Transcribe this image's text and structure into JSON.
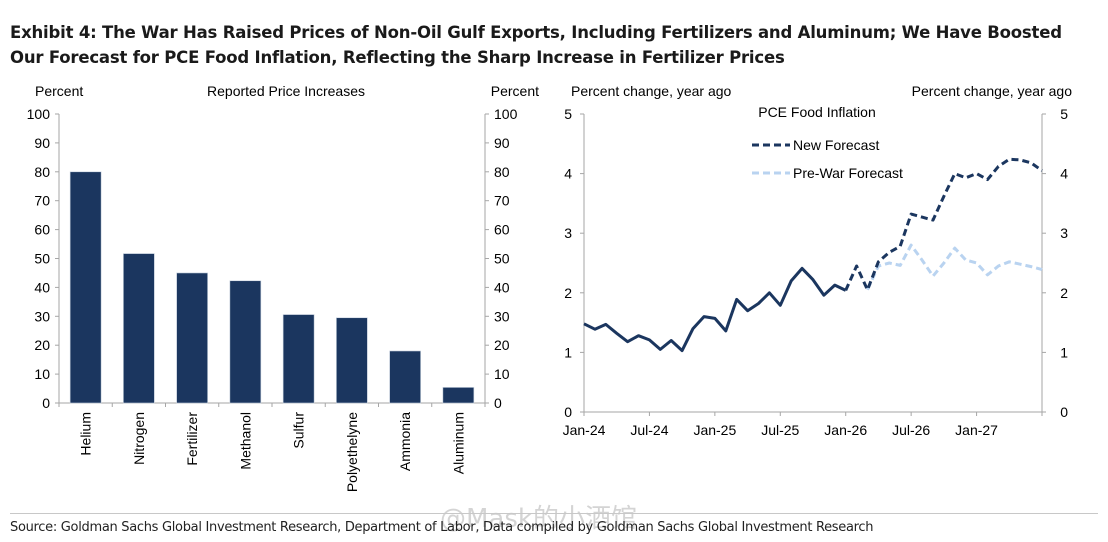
{
  "title": "Exhibit 4: The War Has Raised Prices of Non-Oil Gulf Exports, Including Fertilizers and Aluminum; We Have Boosted Our Forecast for PCE Food Inflation, Reflecting the Sharp Increase in Fertilizer Prices",
  "source": "Source: Goldman Sachs Global Investment Research, Department of Labor, Data compiled by Goldman Sachs Global Investment Research",
  "watermark": "@Mask的小酒馆",
  "chart_data": [
    {
      "type": "bar",
      "title": "Reported Price Increases",
      "ylabel_left": "Percent",
      "ylabel_right": "Percent",
      "ylim": [
        0,
        100
      ],
      "yticks": [
        0,
        10,
        20,
        30,
        40,
        50,
        60,
        70,
        80,
        90,
        100
      ],
      "categories": [
        "Helium",
        "Nitrogen",
        "Fertilizer",
        "Methanol",
        "Sulfur",
        "Polyethelyne",
        "Ammonia",
        "Aluminum"
      ],
      "values": [
        80,
        51.7,
        45,
        42.3,
        30.6,
        29.5,
        18,
        5.4
      ],
      "color": "#1b365f",
      "grid": false
    },
    {
      "type": "line",
      "title": "PCE Food Inflation",
      "ylabel_left": "Percent change, year ago",
      "ylabel_right": "Percent change, year ago",
      "ylim": [
        0,
        5
      ],
      "yticks": [
        0,
        1,
        2,
        3,
        4,
        5
      ],
      "xlim": [
        "2024-01",
        "2027-07"
      ],
      "xticks": [
        "Jan-24",
        "Jul-24",
        "Jan-25",
        "Jul-25",
        "Jan-26",
        "Jul-26",
        "Jan-27"
      ],
      "legend_position": "top-center",
      "grid": false,
      "series": [
        {
          "name": "",
          "style": "solid",
          "color": "#1b365f",
          "start": "2024-01",
          "values": [
            1.48,
            1.39,
            1.47,
            1.32,
            1.18,
            1.28,
            1.21,
            1.05,
            1.2,
            1.03,
            1.4,
            1.6,
            1.57,
            1.36,
            1.89,
            1.7,
            1.82,
            2.0,
            1.79,
            2.2,
            2.41,
            2.22,
            1.96,
            2.13,
            2.04
          ]
        },
        {
          "name": "New Forecast",
          "style": "dashed",
          "color": "#1b365f",
          "start": "2026-01",
          "values": [
            2.04,
            2.45,
            2.05,
            2.52,
            2.68,
            2.78,
            3.32,
            3.27,
            3.22,
            3.62,
            4.0,
            3.93,
            4.0,
            3.9,
            4.12,
            4.24,
            4.23,
            4.18,
            4.05
          ]
        },
        {
          "name": "Pre-War Forecast",
          "style": "dashed",
          "color": "#b9d3f0",
          "start": "2026-03",
          "values": [
            2.05,
            2.45,
            2.5,
            2.46,
            2.8,
            2.55,
            2.28,
            2.5,
            2.75,
            2.55,
            2.5,
            2.3,
            2.45,
            2.52,
            2.48,
            2.44,
            2.39
          ]
        }
      ]
    }
  ]
}
